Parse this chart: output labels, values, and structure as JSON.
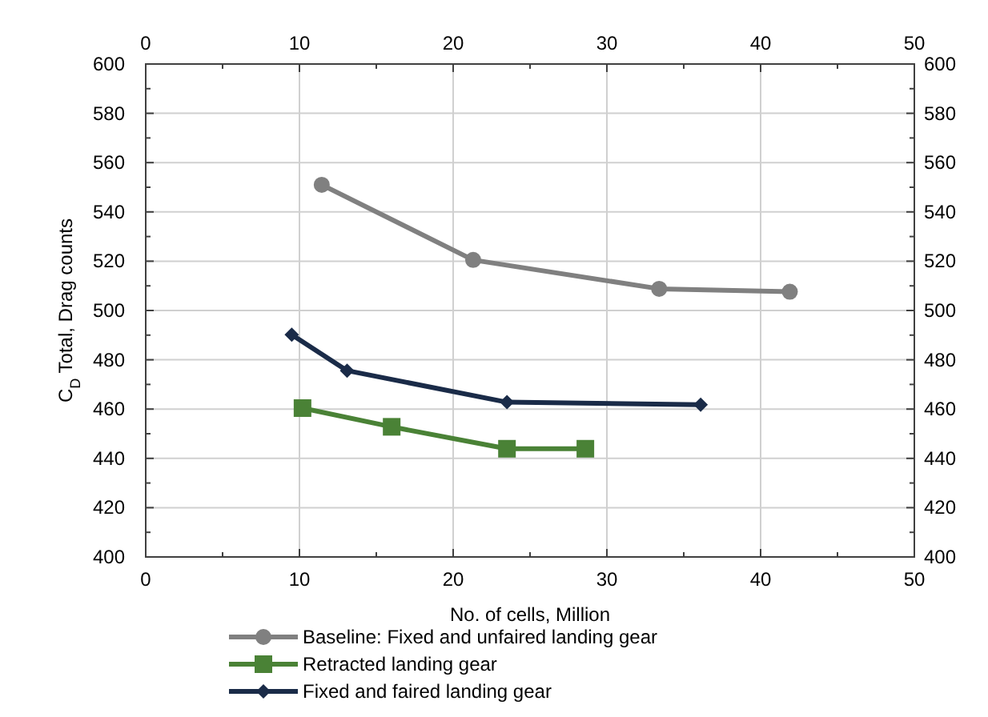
{
  "chart_data": {
    "type": "line",
    "xlabel": "No. of cells, Million",
    "ylabel": "C$_{D}$ Total, Drag counts",
    "xlim": [
      0,
      50
    ],
    "xticks": [
      0,
      10,
      20,
      30,
      40,
      50
    ],
    "x2lim": [
      0,
      50
    ],
    "x2ticks": [
      0,
      10,
      20,
      30,
      40,
      50
    ],
    "ylim": [
      400,
      600
    ],
    "yticks": [
      400,
      420,
      440,
      460,
      480,
      500,
      520,
      540,
      560,
      580,
      600
    ],
    "y2lim": [
      400,
      600
    ],
    "y2ticks": [
      400,
      420,
      440,
      460,
      480,
      500,
      520,
      540,
      560,
      580,
      600
    ],
    "grid": true,
    "legend": "bottom",
    "series": [
      {
        "name": "Baseline: Fixed and unfaired landing gear",
        "color": "#808080",
        "marker": "circle",
        "x": [
          11.45,
          21.3,
          33.4,
          41.9
        ],
        "values": [
          551,
          520.5,
          508.8,
          507.6
        ]
      },
      {
        "name": "Retracted landing gear",
        "color": "#4a8236",
        "marker": "square",
        "x": [
          10.2,
          16.0,
          23.5,
          28.6
        ],
        "values": [
          460.4,
          452.8,
          443.9,
          443.9
        ]
      },
      {
        "name": "Fixed and faired landing gear",
        "color": "#1a2b48",
        "marker": "diamond",
        "x": [
          9.5,
          13.1,
          23.5,
          36.1
        ],
        "values": [
          490.2,
          475.6,
          462.8,
          461.8
        ]
      }
    ]
  }
}
